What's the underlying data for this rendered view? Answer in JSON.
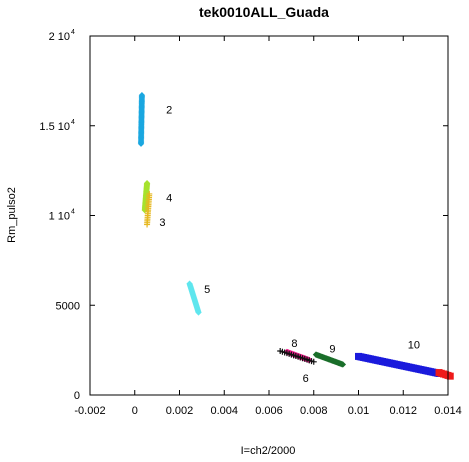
{
  "chart_data": {
    "type": "scatter",
    "title": "tek0010ALL_Guada",
    "xlabel": "I=ch2/2000",
    "ylabel": "Rm_pulso2",
    "xlim": [
      -0.002,
      0.014
    ],
    "ylim": [
      0,
      20000
    ],
    "grid": false,
    "x_ticks": [
      {
        "value": -0.002,
        "label": "-0.002"
      },
      {
        "value": 0,
        "label": "0"
      },
      {
        "value": 0.002,
        "label": "0.002"
      },
      {
        "value": 0.004,
        "label": "0.004"
      },
      {
        "value": 0.006,
        "label": "0.006"
      },
      {
        "value": 0.008,
        "label": "0.008"
      },
      {
        "value": 0.01,
        "label": "0.01"
      },
      {
        "value": 0.012,
        "label": "0.012"
      },
      {
        "value": 0.014,
        "label": "0.014"
      }
    ],
    "y_ticks": [
      {
        "value": 0,
        "base": "0",
        "exp": ""
      },
      {
        "value": 5000,
        "base": "5000",
        "exp": ""
      },
      {
        "value": 10000,
        "base": "1 10",
        "exp": "4"
      },
      {
        "value": 15000,
        "base": "1.5 10",
        "exp": "4"
      },
      {
        "value": 20000,
        "base": "2 10",
        "exp": "4"
      }
    ],
    "series": [
      {
        "label": "2",
        "color": "#1aa7e0",
        "marker": "diamond",
        "start": [
          0.00028,
          14000
        ],
        "end": [
          0.00032,
          16700
        ],
        "n": 40,
        "label_at": [
          0.0014,
          15900
        ]
      },
      {
        "label": "4",
        "color": "#a6e22e",
        "marker": "diamond",
        "start": [
          0.00045,
          10300
        ],
        "end": [
          0.00055,
          11800
        ],
        "n": 35,
        "label_at": [
          0.0014,
          11000
        ]
      },
      {
        "label": "3",
        "color": "#e6b820",
        "marker": "plus",
        "start": [
          0.00055,
          9500
        ],
        "end": [
          0.00065,
          11200
        ],
        "n": 18,
        "label_at": [
          0.0011,
          9650
        ]
      },
      {
        "label": "5",
        "color": "#5fe6ee",
        "marker": "diamond",
        "start": [
          0.00245,
          6200
        ],
        "end": [
          0.00285,
          4600
        ],
        "n": 30,
        "label_at": [
          0.0031,
          5900
        ]
      },
      {
        "label": "8",
        "color": "#ee1a8a",
        "marker": "diamond",
        "start": [
          0.0068,
          2400
        ],
        "end": [
          0.0078,
          1950
        ],
        "n": 26,
        "label_at": [
          0.007,
          2900
        ]
      },
      {
        "label": "6",
        "color": "#111111",
        "marker": "plus",
        "start": [
          0.0065,
          2450
        ],
        "end": [
          0.008,
          1850
        ],
        "n": 16,
        "label_at": [
          0.0075,
          950
        ]
      },
      {
        "label": "9",
        "color": "#1a6e2a",
        "marker": "diamond",
        "start": [
          0.0081,
          2250
        ],
        "end": [
          0.0093,
          1700
        ],
        "n": 30,
        "label_at": [
          0.0087,
          2600
        ]
      },
      {
        "label": "10",
        "color": "#1a1adc",
        "marker": "square",
        "start": [
          0.01,
          2150
        ],
        "end": [
          0.0136,
          1200
        ],
        "n": 48,
        "label_at": [
          0.0122,
          2800
        ]
      },
      {
        "label": "",
        "color": "#ee1a1a",
        "marker": "square",
        "start": [
          0.0136,
          1250
        ],
        "end": [
          0.0141,
          1050
        ],
        "n": 6,
        "label_at": null
      }
    ]
  }
}
